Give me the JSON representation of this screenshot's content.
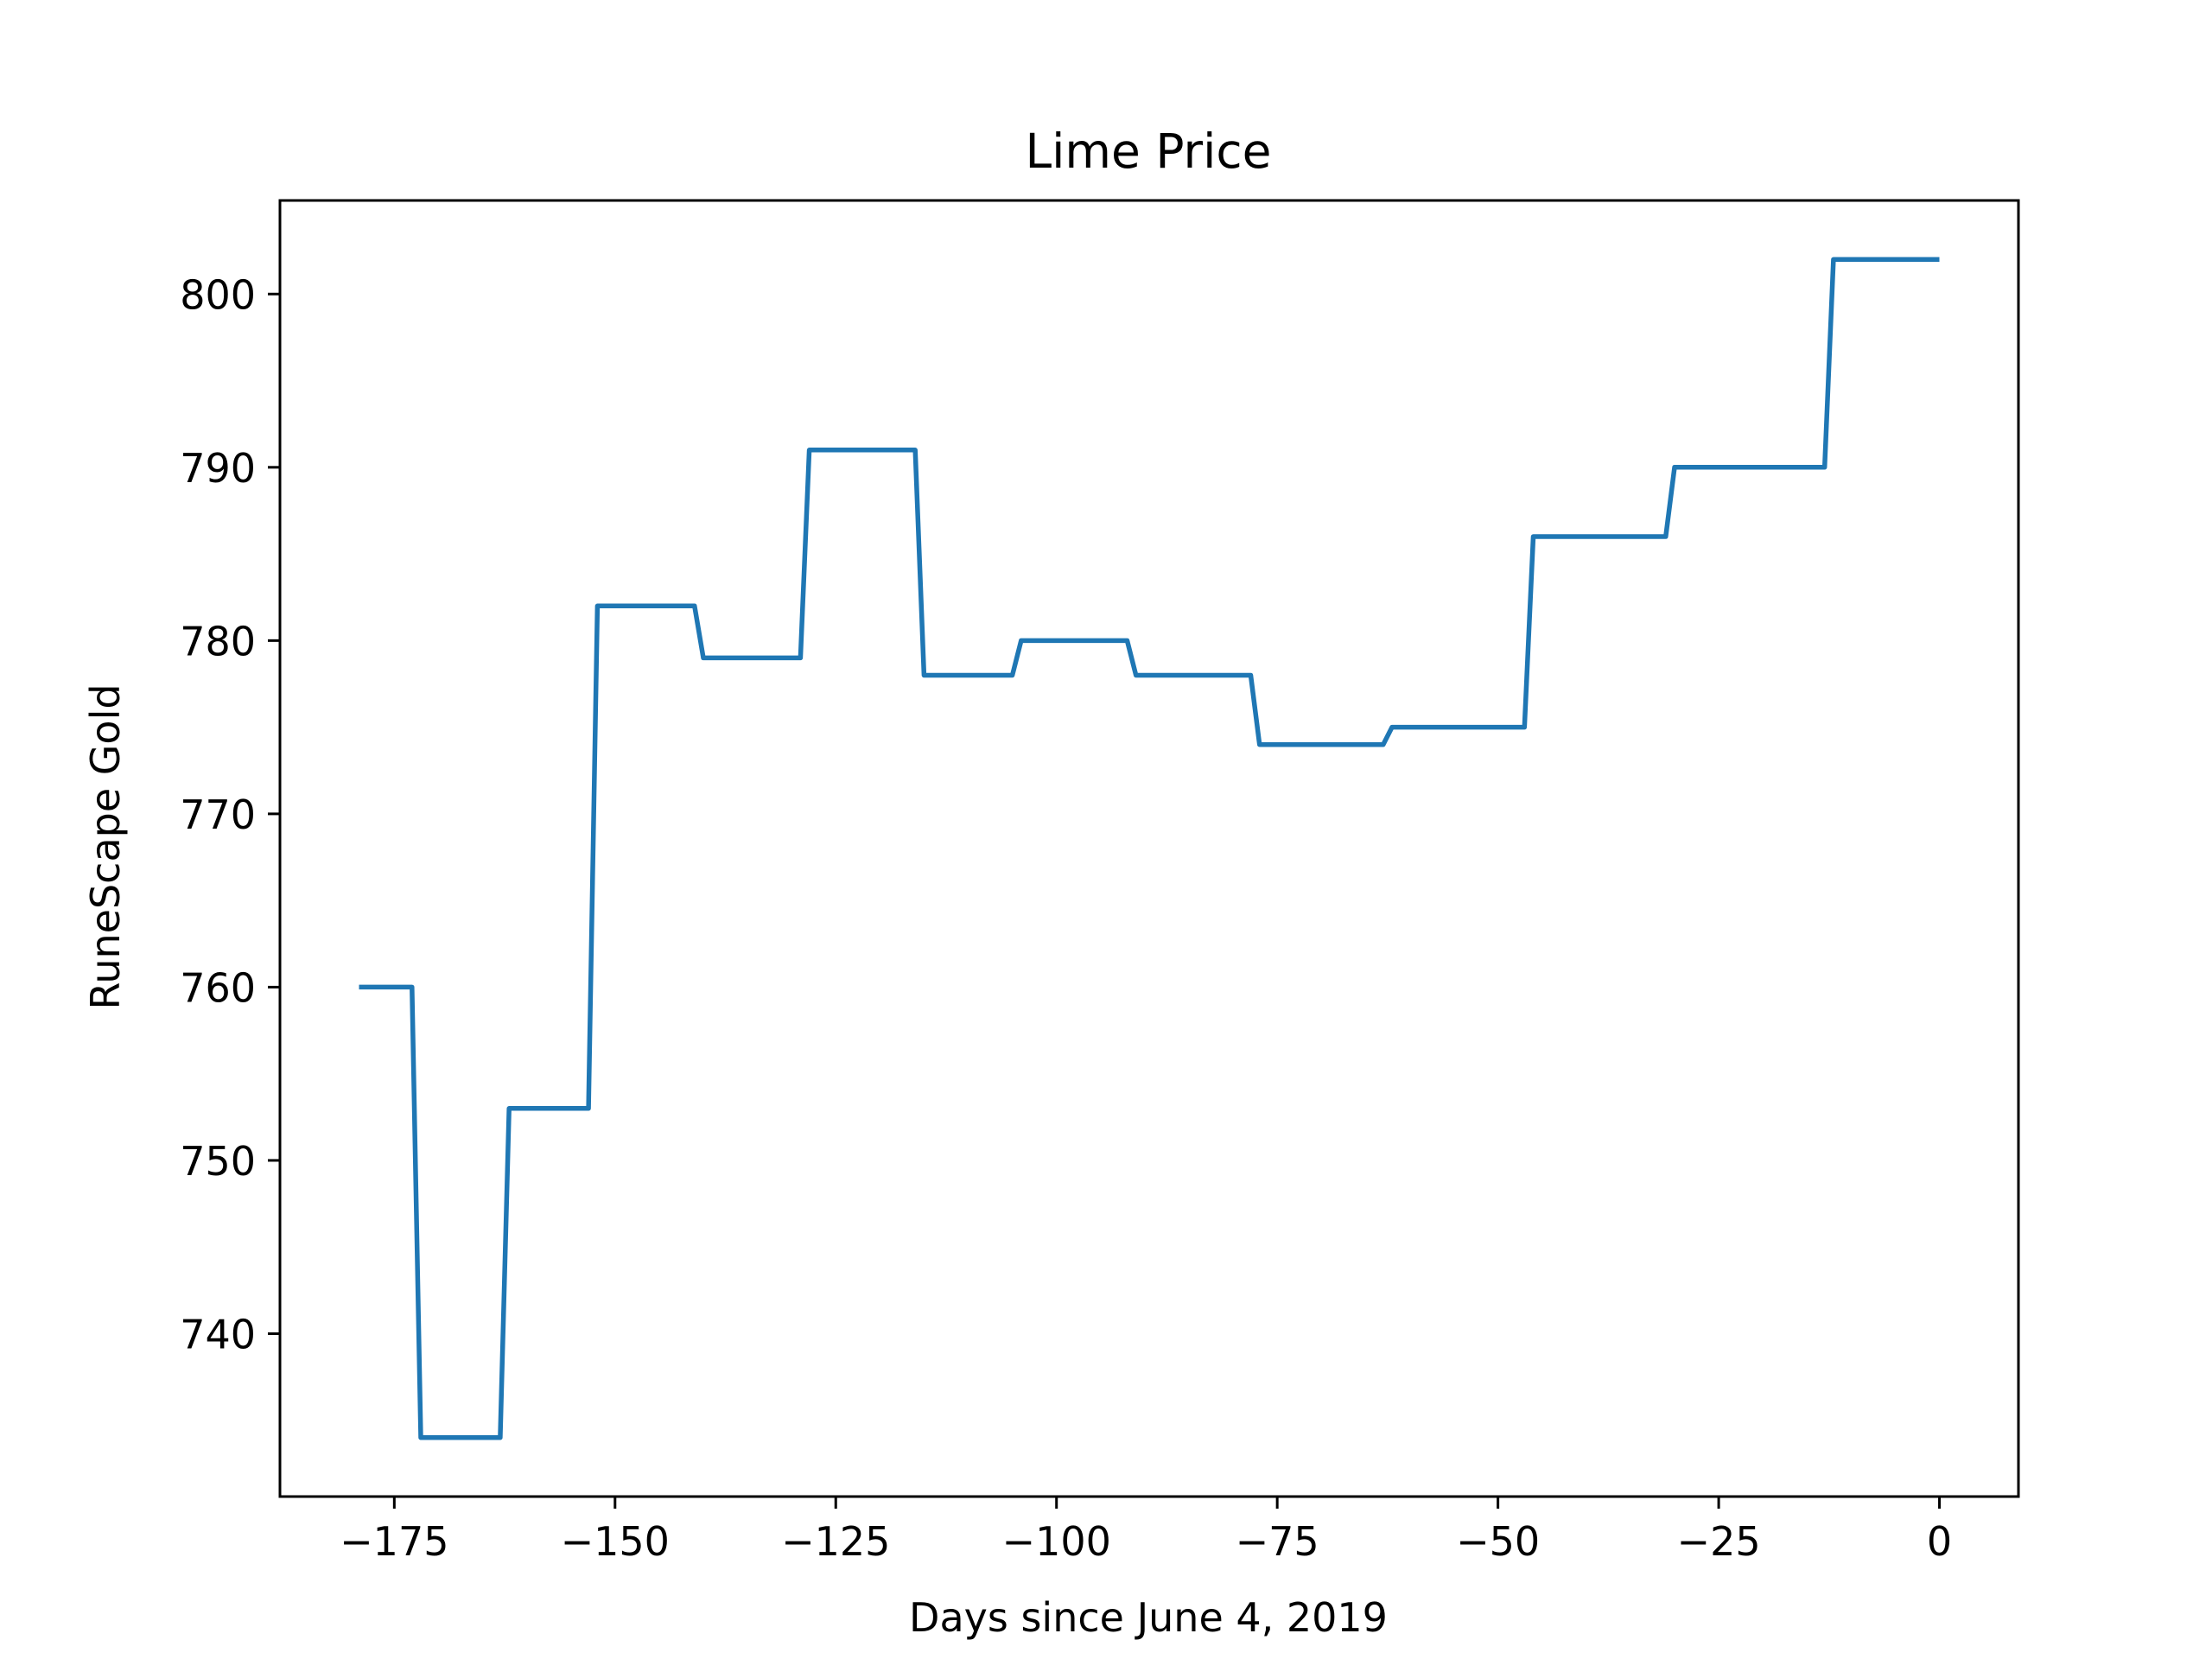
{
  "chart_data": {
    "type": "line",
    "title": "Lime Price",
    "xlabel": "Days since June 4, 2019",
    "ylabel": "RuneScape Gold",
    "xlim": [
      -187.95,
      8.95
    ],
    "ylim": [
      730.6,
      805.4
    ],
    "grid": false,
    "legend": "none",
    "x_ticks": [
      -175,
      -150,
      -125,
      -100,
      -75,
      -50,
      -25,
      0
    ],
    "x_tick_labels": [
      "−175",
      "−150",
      "−125",
      "−100",
      "−75",
      "−50",
      "−25",
      "0"
    ],
    "y_ticks": [
      740,
      750,
      760,
      770,
      780,
      790,
      800
    ],
    "y_tick_labels": [
      "740",
      "750",
      "760",
      "770",
      "780",
      "790",
      "800"
    ],
    "series": [
      {
        "color": "#1f77b4",
        "points": [
          [
            -179,
            760
          ],
          [
            -173,
            760
          ],
          [
            -172,
            734
          ],
          [
            -163,
            734
          ],
          [
            -162,
            753
          ],
          [
            -153,
            753
          ],
          [
            -152,
            782
          ],
          [
            -141,
            782
          ],
          [
            -140,
            779
          ],
          [
            -129,
            779
          ],
          [
            -128,
            791
          ],
          [
            -116,
            791
          ],
          [
            -115,
            778
          ],
          [
            -105,
            778
          ],
          [
            -104,
            780
          ],
          [
            -92,
            780
          ],
          [
            -91,
            778
          ],
          [
            -78,
            778
          ],
          [
            -77,
            774
          ],
          [
            -63,
            774
          ],
          [
            -62,
            775
          ],
          [
            -47,
            775
          ],
          [
            -46,
            786
          ],
          [
            -31,
            786
          ],
          [
            -30,
            790
          ],
          [
            -13,
            790
          ],
          [
            -12,
            802
          ],
          [
            0,
            802
          ]
        ]
      }
    ]
  }
}
